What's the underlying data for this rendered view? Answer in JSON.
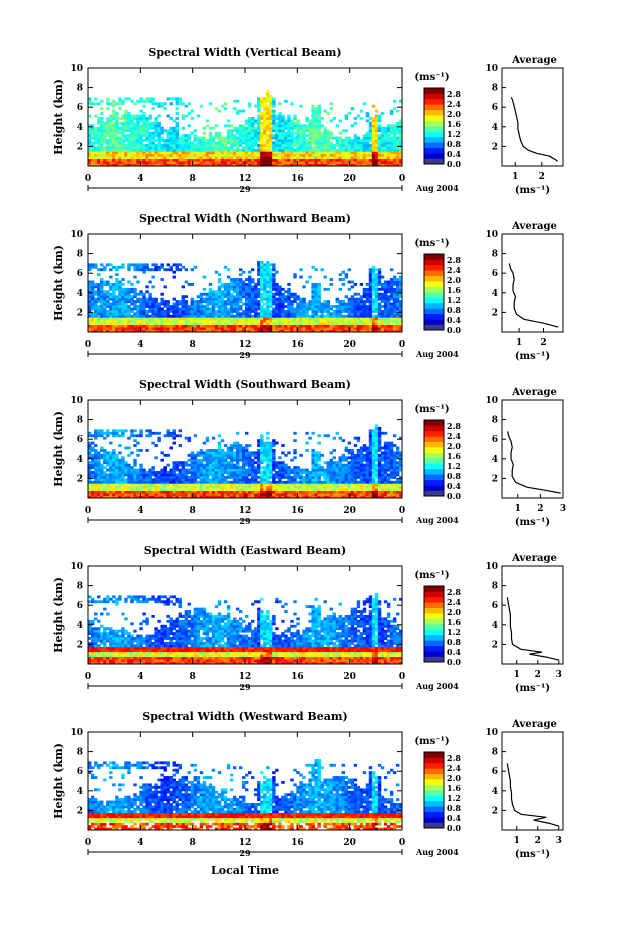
{
  "figure": {
    "xlabel": "Local Time",
    "date_label": "Aug 2004",
    "day_label": "29",
    "unit_label": "(ms⁻¹)",
    "average_title": "Average",
    "height_label": "Height (km)"
  },
  "chart_data": [
    {
      "type": "heatmap",
      "title": "Spectral Width (Vertical Beam)",
      "ylabel": "Height (km)",
      "xlim": [
        0,
        24
      ],
      "ylim": [
        0,
        10
      ],
      "xticks": [
        "0",
        "4",
        "8",
        "12",
        "16",
        "20",
        "0"
      ],
      "yticks": [
        "2",
        "4",
        "6",
        "8",
        "10"
      ],
      "colorbar": {
        "label": "(ms⁻¹)",
        "ticks": [
          "2.8",
          "2.4",
          "2.0",
          "1.6",
          "1.2",
          "0.8",
          "0.4",
          "0.0"
        ],
        "min": 0,
        "max": 2.8
      },
      "profile": {
        "title": "Average",
        "xlabel": "(ms⁻¹)",
        "xticks": [
          "1",
          "2"
        ],
        "xlim": [
          0.5,
          2.8
        ],
        "ylim": [
          0,
          10
        ],
        "yticks": [
          "2",
          "4",
          "6",
          "8",
          "10"
        ],
        "points": [
          [
            2.6,
            0.5
          ],
          [
            2.3,
            1.0
          ],
          [
            1.8,
            1.3
          ],
          [
            1.5,
            1.6
          ],
          [
            1.3,
            2.0
          ],
          [
            1.2,
            2.6
          ],
          [
            1.15,
            3.2
          ],
          [
            1.1,
            3.8
          ],
          [
            1.1,
            4.4
          ],
          [
            1.05,
            5.0
          ],
          [
            1.0,
            5.6
          ],
          [
            0.95,
            6.2
          ],
          [
            0.9,
            6.7
          ],
          [
            0.85,
            7.0
          ]
        ]
      }
    },
    {
      "type": "heatmap",
      "title": "Spectral Width (Northward Beam)",
      "ylabel": "Height (km)",
      "xlim": [
        0,
        24
      ],
      "ylim": [
        0,
        10
      ],
      "xticks": [
        "0",
        "4",
        "8",
        "12",
        "16",
        "20",
        "0"
      ],
      "yticks": [
        "2",
        "4",
        "6",
        "8",
        "10"
      ],
      "colorbar": {
        "label": "(ms⁻¹)",
        "ticks": [
          "2.8",
          "2.4",
          "2.0",
          "1.6",
          "1.2",
          "0.8",
          "0.4",
          "0.0"
        ],
        "min": 0,
        "max": 2.8
      },
      "profile": {
        "title": "Average",
        "xlabel": "(ms⁻¹)",
        "xticks": [
          "1",
          "2"
        ],
        "xlim": [
          0.3,
          2.8
        ],
        "ylim": [
          0,
          10
        ],
        "yticks": [
          "2",
          "4",
          "6",
          "8",
          "10"
        ],
        "points": [
          [
            2.6,
            0.5
          ],
          [
            2.0,
            0.9
          ],
          [
            1.2,
            1.3
          ],
          [
            0.9,
            1.8
          ],
          [
            0.8,
            2.4
          ],
          [
            0.8,
            3.0
          ],
          [
            0.85,
            3.6
          ],
          [
            0.75,
            4.2
          ],
          [
            0.75,
            4.8
          ],
          [
            0.8,
            5.4
          ],
          [
            0.75,
            6.0
          ],
          [
            0.65,
            6.5
          ],
          [
            0.6,
            7.0
          ]
        ]
      }
    },
    {
      "type": "heatmap",
      "title": "Spectral Width (Southward Beam)",
      "ylabel": "Height (km)",
      "xlim": [
        0,
        24
      ],
      "ylim": [
        0,
        10
      ],
      "xticks": [
        "0",
        "4",
        "8",
        "12",
        "16",
        "20",
        "0"
      ],
      "yticks": [
        "2",
        "4",
        "6",
        "8",
        "10"
      ],
      "colorbar": {
        "label": "(ms⁻¹)",
        "ticks": [
          "2.8",
          "2.4",
          "2.0",
          "1.6",
          "1.2",
          "0.8",
          "0.4",
          "0.0"
        ],
        "min": 0,
        "max": 2.8
      },
      "profile": {
        "title": "Average",
        "xlabel": "(ms⁻¹)",
        "xticks": [
          "1",
          "2",
          "3"
        ],
        "xlim": [
          0.3,
          3.0
        ],
        "ylim": [
          0,
          10
        ],
        "yticks": [
          "2",
          "4",
          "6",
          "8",
          "10"
        ],
        "points": [
          [
            2.9,
            0.5
          ],
          [
            2.2,
            0.8
          ],
          [
            1.4,
            1.1
          ],
          [
            0.9,
            1.6
          ],
          [
            0.75,
            2.2
          ],
          [
            0.75,
            2.8
          ],
          [
            0.8,
            3.4
          ],
          [
            0.7,
            4.0
          ],
          [
            0.7,
            4.6
          ],
          [
            0.75,
            5.2
          ],
          [
            0.7,
            5.8
          ],
          [
            0.6,
            6.3
          ],
          [
            0.55,
            6.8
          ]
        ]
      }
    },
    {
      "type": "heatmap",
      "title": "Spectral Width (Eastward Beam)",
      "ylabel": "Height (km)",
      "xlim": [
        0,
        24
      ],
      "ylim": [
        0,
        10
      ],
      "xticks": [
        "0",
        "4",
        "8",
        "12",
        "16",
        "20",
        "0"
      ],
      "yticks": [
        "2",
        "4",
        "6",
        "8",
        "10"
      ],
      "colorbar": {
        "label": "(ms⁻¹)",
        "ticks": [
          "2.8",
          "2.4",
          "2.0",
          "1.6",
          "1.2",
          "0.8",
          "0.4",
          "0.0"
        ],
        "min": 0,
        "max": 2.8
      },
      "profile": {
        "title": "Average",
        "xlabel": "(ms⁻¹)",
        "xticks": [
          "1",
          "2",
          "3"
        ],
        "xlim": [
          0.3,
          3.2
        ],
        "ylim": [
          0,
          10
        ],
        "yticks": [
          "2",
          "4",
          "6",
          "8",
          "10"
        ],
        "points": [
          [
            3.0,
            0.4
          ],
          [
            2.4,
            0.7
          ],
          [
            1.6,
            1.0
          ],
          [
            2.2,
            1.2
          ],
          [
            1.2,
            1.5
          ],
          [
            0.8,
            2.0
          ],
          [
            0.75,
            2.6
          ],
          [
            0.75,
            3.2
          ],
          [
            0.7,
            3.8
          ],
          [
            0.7,
            4.4
          ],
          [
            0.7,
            5.0
          ],
          [
            0.65,
            5.6
          ],
          [
            0.6,
            6.2
          ],
          [
            0.55,
            6.8
          ]
        ]
      }
    },
    {
      "type": "heatmap",
      "title": "Spectral Width (Westward Beam)",
      "ylabel": "Height (km)",
      "xlim": [
        0,
        24
      ],
      "ylim": [
        0,
        10
      ],
      "xticks": [
        "0",
        "4",
        "8",
        "12",
        "16",
        "20",
        "0"
      ],
      "yticks": [
        "2",
        "4",
        "6",
        "8",
        "10"
      ],
      "colorbar": {
        "label": "(ms⁻¹)",
        "ticks": [
          "2.8",
          "2.4",
          "2.0",
          "1.6",
          "1.2",
          "0.8",
          "0.4",
          "0.0"
        ],
        "min": 0,
        "max": 2.8
      },
      "profile": {
        "title": "Average",
        "xlabel": "(ms⁻¹)",
        "xticks": [
          "1",
          "2",
          "3"
        ],
        "xlim": [
          0.3,
          3.2
        ],
        "ylim": [
          0,
          10
        ],
        "yticks": [
          "2",
          "4",
          "6",
          "8",
          "10"
        ],
        "points": [
          [
            3.0,
            0.4
          ],
          [
            2.5,
            0.7
          ],
          [
            1.8,
            1.0
          ],
          [
            2.4,
            1.3
          ],
          [
            1.2,
            1.6
          ],
          [
            0.9,
            2.0
          ],
          [
            0.8,
            2.6
          ],
          [
            0.75,
            3.2
          ],
          [
            0.75,
            3.8
          ],
          [
            0.7,
            4.4
          ],
          [
            0.7,
            5.0
          ],
          [
            0.65,
            5.6
          ],
          [
            0.6,
            6.2
          ],
          [
            0.55,
            6.8
          ]
        ]
      }
    }
  ]
}
